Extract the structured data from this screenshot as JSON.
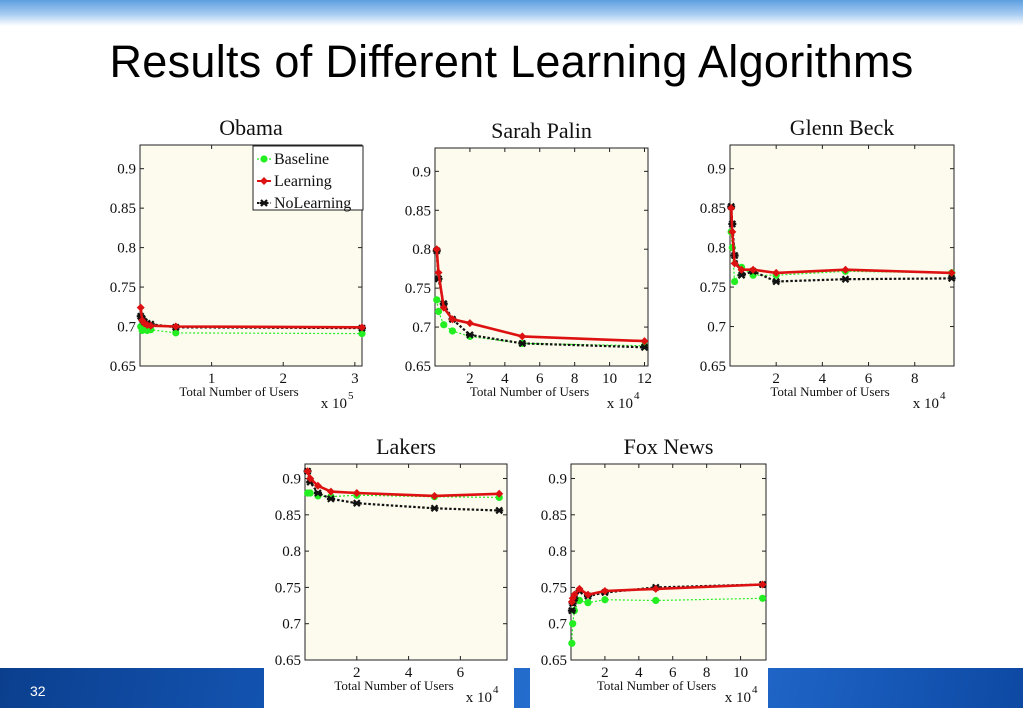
{
  "slide": {
    "title": "Results of Different Learning Algorithms",
    "page_number": "32"
  },
  "colors": {
    "plot_bg": "#fcfbed",
    "baseline": "#22ee22",
    "learning": "#dd1111",
    "nolearning": "#111111"
  },
  "chart_data": [
    {
      "type": "line",
      "title": "Obama",
      "xlabel": "Total Number of Users",
      "multiplier": "x 10",
      "multiplier_exp": "5",
      "xlim": [
        0,
        3.1
      ],
      "ylim": [
        0.65,
        0.93
      ],
      "xticks": [
        1,
        2,
        3
      ],
      "yticks": [
        0.65,
        0.7,
        0.75,
        0.8,
        0.85,
        0.9
      ],
      "ytick_labels": [
        "0.65",
        "0.7",
        "0.75",
        "0.8",
        "0.85",
        "0.9"
      ],
      "legend": {
        "position": "top-right",
        "entries": [
          "Baseline",
          "Learning",
          "NoLearning"
        ]
      },
      "series": [
        {
          "name": "Baseline",
          "x": [
            0.01,
            0.03,
            0.06,
            0.1,
            0.15,
            0.5,
            3.1
          ],
          "y": [
            0.7,
            0.695,
            0.7,
            0.695,
            0.696,
            0.692,
            0.691
          ]
        },
        {
          "name": "Learning",
          "x": [
            0.01,
            0.03,
            0.06,
            0.1,
            0.15,
            0.5,
            3.1
          ],
          "y": [
            0.724,
            0.708,
            0.704,
            0.702,
            0.701,
            0.7,
            0.699
          ]
        },
        {
          "name": "NoLearning",
          "x": [
            0.01,
            0.03,
            0.06,
            0.1,
            0.15,
            0.5,
            3.1
          ],
          "y": [
            0.713,
            0.71,
            0.706,
            0.704,
            0.703,
            0.699,
            0.698
          ]
        }
      ]
    },
    {
      "type": "line",
      "title": "Sarah Palin",
      "xlabel": "Total Number of Users",
      "multiplier": "x 10",
      "multiplier_exp": "4",
      "xlim": [
        0,
        12.2
      ],
      "ylim": [
        0.65,
        0.93
      ],
      "xticks": [
        2,
        4,
        6,
        8,
        10,
        12
      ],
      "yticks": [
        0.65,
        0.7,
        0.75,
        0.8,
        0.85,
        0.9
      ],
      "ytick_labels": [
        "0.65",
        "0.7",
        "0.75",
        "0.8",
        "0.85",
        "0.9"
      ],
      "series": [
        {
          "name": "Baseline",
          "x": [
            0.1,
            0.2,
            0.5,
            1.0,
            2.0,
            5.0,
            12.0
          ],
          "y": [
            0.735,
            0.72,
            0.703,
            0.695,
            0.688,
            0.679,
            0.676
          ]
        },
        {
          "name": "Learning",
          "x": [
            0.1,
            0.2,
            0.5,
            1.0,
            2.0,
            5.0,
            12.0
          ],
          "y": [
            0.8,
            0.77,
            0.725,
            0.71,
            0.705,
            0.688,
            0.682
          ]
        },
        {
          "name": "NoLearning",
          "x": [
            0.1,
            0.2,
            0.5,
            1.0,
            2.0,
            5.0,
            12.0
          ],
          "y": [
            0.798,
            0.762,
            0.73,
            0.71,
            0.69,
            0.679,
            0.674
          ]
        }
      ]
    },
    {
      "type": "line",
      "title": "Glenn Beck",
      "xlabel": "Total Number of Users",
      "multiplier": "x 10",
      "multiplier_exp": "4",
      "xlim": [
        0,
        9.7
      ],
      "ylim": [
        0.65,
        0.93
      ],
      "xticks": [
        2,
        4,
        6,
        8
      ],
      "yticks": [
        0.65,
        0.7,
        0.75,
        0.8,
        0.85,
        0.9
      ],
      "ytick_labels": [
        "0.65",
        "0.7",
        "0.75",
        "0.8",
        "0.85",
        "0.9"
      ],
      "series": [
        {
          "name": "Baseline",
          "x": [
            0.05,
            0.1,
            0.2,
            0.5,
            1.0,
            2.0,
            5.0,
            9.6
          ],
          "y": [
            0.82,
            0.8,
            0.757,
            0.775,
            0.765,
            0.765,
            0.77,
            0.768
          ]
        },
        {
          "name": "Learning",
          "x": [
            0.05,
            0.1,
            0.2,
            0.5,
            1.0,
            2.0,
            5.0,
            9.6
          ],
          "y": [
            0.85,
            0.82,
            0.78,
            0.772,
            0.772,
            0.768,
            0.772,
            0.768
          ]
        },
        {
          "name": "NoLearning",
          "x": [
            0.05,
            0.1,
            0.2,
            0.5,
            1.0,
            2.0,
            5.0,
            9.6
          ],
          "y": [
            0.852,
            0.83,
            0.79,
            0.765,
            0.77,
            0.757,
            0.76,
            0.761
          ]
        }
      ]
    },
    {
      "type": "line",
      "title": "Lakers",
      "xlabel": "Total Number of Users",
      "multiplier": "x 10",
      "multiplier_exp": "4",
      "xlim": [
        0,
        7.8
      ],
      "ylim": [
        0.65,
        0.92
      ],
      "xticks": [
        2,
        4,
        6
      ],
      "yticks": [
        0.65,
        0.7,
        0.75,
        0.8,
        0.85,
        0.9
      ],
      "ytick_labels": [
        "0.65",
        "0.7",
        "0.75",
        "0.8",
        "0.85",
        "0.9"
      ],
      "series": [
        {
          "name": "Baseline",
          "x": [
            0.1,
            0.2,
            0.5,
            1.0,
            2.0,
            5.0,
            7.5
          ],
          "y": [
            0.88,
            0.88,
            0.876,
            0.875,
            0.877,
            0.875,
            0.874
          ]
        },
        {
          "name": "Learning",
          "x": [
            0.1,
            0.2,
            0.5,
            1.0,
            2.0,
            5.0,
            7.5
          ],
          "y": [
            0.91,
            0.9,
            0.89,
            0.882,
            0.88,
            0.876,
            0.879
          ]
        },
        {
          "name": "NoLearning",
          "x": [
            0.1,
            0.2,
            0.5,
            1.0,
            2.0,
            5.0,
            7.5
          ],
          "y": [
            0.91,
            0.895,
            0.88,
            0.872,
            0.866,
            0.859,
            0.856
          ]
        }
      ]
    },
    {
      "type": "line",
      "title": "Fox News",
      "xlabel": "Total Number of Users",
      "multiplier": "x 10",
      "multiplier_exp": "4",
      "xlim": [
        0,
        11.5
      ],
      "ylim": [
        0.65,
        0.92
      ],
      "xticks": [
        2,
        4,
        6,
        8,
        10
      ],
      "yticks": [
        0.65,
        0.7,
        0.75,
        0.8,
        0.85,
        0.9
      ],
      "ytick_labels": [
        "0.65",
        "0.7",
        "0.75",
        "0.8",
        "0.85",
        "0.9"
      ],
      "series": [
        {
          "name": "Baseline",
          "x": [
            0.05,
            0.1,
            0.2,
            0.5,
            1.0,
            2.0,
            5.0,
            11.3
          ],
          "y": [
            0.673,
            0.7,
            0.718,
            0.732,
            0.729,
            0.733,
            0.732,
            0.735
          ]
        },
        {
          "name": "Learning",
          "x": [
            0.05,
            0.1,
            0.2,
            0.5,
            1.0,
            2.0,
            5.0,
            11.3
          ],
          "y": [
            0.73,
            0.735,
            0.74,
            0.748,
            0.74,
            0.745,
            0.748,
            0.754
          ]
        },
        {
          "name": "NoLearning",
          "x": [
            0.05,
            0.1,
            0.2,
            0.5,
            1.0,
            2.0,
            5.0,
            11.3
          ],
          "y": [
            0.718,
            0.728,
            0.735,
            0.745,
            0.738,
            0.743,
            0.75,
            0.754
          ]
        }
      ]
    }
  ]
}
